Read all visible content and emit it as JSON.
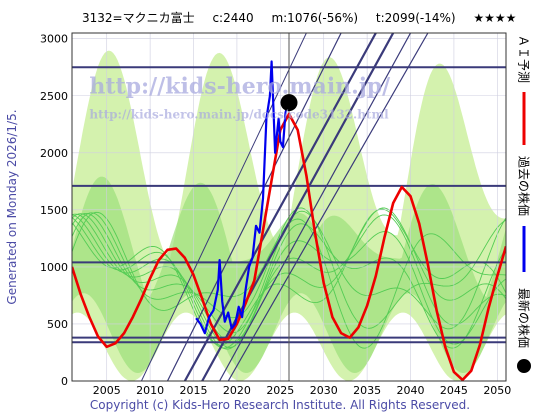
{
  "header": {
    "code_name": "3132=マクニカ富士",
    "current": "c:2440",
    "min": "m:1076(-56%)",
    "target": "t:2099(-14%)",
    "stars": "★★★★"
  },
  "side_text": "Generated on Monday 2026/1/5.",
  "footer": "Copyright (c) Kids-Hero Research Institute. All Rights Reserved.",
  "watermarks": {
    "url_main": "http://kids-hero.main.jp/",
    "url_sub": "http://kids-hero.main.jp/docs/code3132.html"
  },
  "legend": {
    "ai": "ＡＩ予測",
    "past": "過去の株価",
    "latest": "最新の株価"
  },
  "colors": {
    "ai_line": "#ee0000",
    "past_line": "#0000ee",
    "band_light": "#ccf0a0",
    "band_green": "#55cc55",
    "grid_dark": "#3a3a7a",
    "label": "#4b4ba6"
  },
  "chart_data": {
    "type": "line",
    "xlim": [
      2001,
      2051
    ],
    "ylim": [
      0,
      3050
    ],
    "x_ticks": [
      "2005",
      "2010",
      "2015",
      "2020",
      "2025",
      "2030",
      "2035",
      "2040",
      "2045",
      "2050"
    ],
    "y_ticks": [
      "0",
      "500",
      "1000",
      "1500",
      "2000",
      "2500",
      "3000"
    ],
    "horizontal_levels": [
      340,
      380,
      1040,
      1710,
      2750
    ],
    "current_marker": {
      "x": 2026.0,
      "y": 2440
    },
    "series": [
      {
        "name": "ＡＩ予測",
        "x": [
          2001,
          2002,
          2003,
          2004,
          2005,
          2006,
          2007,
          2008,
          2009,
          2010,
          2011,
          2012,
          2013,
          2014,
          2015,
          2016,
          2017,
          2018,
          2019,
          2020,
          2021,
          2022,
          2023,
          2024,
          2025,
          2026,
          2027,
          2028,
          2029,
          2030,
          2031,
          2032,
          2033,
          2034,
          2035,
          2036,
          2037,
          2038,
          2039,
          2040,
          2041,
          2042,
          2043,
          2044,
          2045,
          2046,
          2047,
          2048,
          2049,
          2050,
          2051
        ],
        "y": [
          1000,
          760,
          560,
          390,
          300,
          330,
          420,
          560,
          720,
          900,
          1060,
          1150,
          1160,
          1080,
          930,
          720,
          500,
          360,
          370,
          500,
          680,
          880,
          1320,
          1760,
          2200,
          2340,
          2200,
          1800,
          1300,
          860,
          560,
          420,
          380,
          470,
          660,
          920,
          1260,
          1560,
          1700,
          1620,
          1380,
          1020,
          620,
          300,
          80,
          10,
          90,
          320,
          640,
          920,
          1180
        ]
      },
      {
        "name": "過去の株価",
        "x": [
          2015.3,
          2015.8,
          2016.3,
          2016.8,
          2017.3,
          2017.8,
          2018.0,
          2018.3,
          2018.6,
          2019.0,
          2019.4,
          2019.8,
          2020.2,
          2020.6,
          2021.0,
          2021.4,
          2021.8,
          2022.2,
          2022.6,
          2023.0,
          2023.4,
          2023.8,
          2024.0,
          2024.2,
          2024.4,
          2024.6,
          2024.8,
          2025.0,
          2025.3,
          2025.6,
          2025.9,
          2026.0
        ],
        "y": [
          550,
          500,
          420,
          560,
          620,
          800,
          1060,
          700,
          520,
          600,
          460,
          500,
          650,
          560,
          800,
          1000,
          1080,
          1360,
          1300,
          1600,
          2300,
          2500,
          2800,
          2400,
          2000,
          2150,
          2300,
          2100,
          2050,
          2350,
          2450,
          2440
        ]
      }
    ]
  }
}
